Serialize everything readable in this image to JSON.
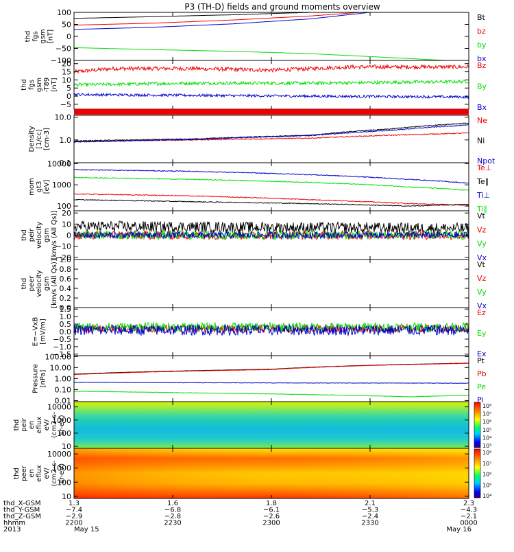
{
  "title": "P3 (TH-D) fields and ground moments overview",
  "colors": {
    "black": "#000000",
    "red": "#ee0000",
    "green": "#00dd00",
    "blue": "#0000cc"
  },
  "chart_data": [
    {
      "type": "line",
      "ylabel": [
        "thd",
        "fgs",
        "gsm",
        "[nT]"
      ],
      "ylim": [
        -100,
        100
      ],
      "ytype": "linear",
      "yticks": [
        100,
        50,
        0,
        -50,
        -100
      ],
      "ytick_labels": [
        "100",
        "50",
        "0",
        "−50",
        "−100"
      ],
      "series": [
        {
          "name": "Bt",
          "color": "#000000",
          "x": [
            0,
            0.2,
            0.4,
            0.6,
            0.75,
            1
          ],
          "y": [
            75,
            82,
            90,
            100,
            110,
            125
          ],
          "noise": 0
        },
        {
          "name": "bz",
          "color": "#ee0000",
          "x": [
            0,
            0.2,
            0.4,
            0.6,
            0.75,
            1
          ],
          "y": [
            47,
            55,
            68,
            85,
            103,
            130
          ],
          "noise": 0
        },
        {
          "name": "by",
          "color": "#00dd00",
          "x": [
            0,
            0.2,
            0.4,
            0.6,
            0.8,
            1
          ],
          "y": [
            -47,
            -55,
            -62,
            -72,
            -88,
            -105
          ],
          "noise": 0
        },
        {
          "name": "bx",
          "color": "#0000cc",
          "x": [
            0,
            0.2,
            0.4,
            0.6,
            0.75,
            1
          ],
          "y": [
            29,
            38,
            52,
            73,
            100,
            130
          ],
          "noise": 0
        }
      ]
    },
    {
      "type": "line",
      "ylabel": [
        "thd",
        "fgs",
        "gsm",
        "-T89",
        "[nT]"
      ],
      "ylim": [
        -8,
        22
      ],
      "ytype": "linear",
      "yticks": [
        20,
        15,
        10,
        5,
        0,
        -5
      ],
      "ytick_labels": [
        "20",
        "15",
        "10",
        "5",
        "0",
        "−5"
      ],
      "series": [
        {
          "name": "Bz",
          "color": "#ee0000",
          "x": [
            0,
            0.1,
            0.3,
            0.5,
            0.7,
            1
          ],
          "y": [
            15,
            17,
            17,
            16,
            18,
            18
          ],
          "noise": 1.2
        },
        {
          "name": "By",
          "color": "#00dd00",
          "x": [
            0,
            0.3,
            0.6,
            1
          ],
          "y": [
            7,
            8,
            8,
            9
          ],
          "noise": 1.0
        },
        {
          "name": "Bx",
          "color": "#0000cc",
          "x": [
            0,
            0.3,
            0.6,
            1
          ],
          "y": [
            1,
            0.5,
            0,
            -0.5
          ],
          "noise": 0.8
        }
      ]
    },
    {
      "type": "line",
      "ylabel": [
        "Density",
        "[1/cc]",
        "[cm-3]"
      ],
      "ylim": [
        0.1,
        12
      ],
      "ytype": "log",
      "yticks": [
        10,
        1,
        0.1
      ],
      "ytick_labels": [
        "10.0",
        "1.0",
        "0.1"
      ],
      "series": [
        {
          "name": "Ne",
          "color": "#ee0000",
          "x": [
            0,
            0.3,
            0.6,
            1
          ],
          "y": [
            0.85,
            1.0,
            1.2,
            2.0
          ],
          "noise": 0.02
        },
        {
          "name": "Ni",
          "color": "#000000",
          "x": [
            0,
            0.3,
            0.6,
            0.8,
            1
          ],
          "y": [
            0.9,
            1.1,
            1.6,
            3.0,
            5.5
          ],
          "noise": 0.02
        },
        {
          "name": "Npot",
          "color": "#0000cc",
          "x": [
            0,
            0.3,
            0.6,
            0.8,
            1
          ],
          "y": [
            0.8,
            1.05,
            1.55,
            2.6,
            4.5
          ],
          "noise": 0.02
        }
      ]
    },
    {
      "type": "line",
      "ylabel": [
        "mom",
        "gt3",
        "[eV]"
      ],
      "ylim": [
        60,
        11000
      ],
      "ytype": "log",
      "yticks": [
        10000,
        1000,
        100
      ],
      "ytick_labels": [
        "10000",
        "1000",
        "100"
      ],
      "series": [
        {
          "name": "Te⊥",
          "color": "#ee0000",
          "x": [
            0,
            0.3,
            0.6,
            0.85,
            1
          ],
          "y": [
            370,
            300,
            200,
            130,
            110
          ],
          "noise": 0.02
        },
        {
          "name": "Te∥",
          "color": "#000000",
          "x": [
            0,
            0.3,
            0.6,
            0.85,
            1
          ],
          "y": [
            200,
            160,
            130,
            100,
            120
          ],
          "noise": 0.02
        },
        {
          "name": "Ti⊥",
          "color": "#0000cc",
          "x": [
            0,
            0.3,
            0.6,
            0.85,
            1
          ],
          "y": [
            5200,
            4300,
            3000,
            1800,
            1200
          ],
          "noise": 0.02
        },
        {
          "name": "Ti∥",
          "color": "#00dd00",
          "x": [
            0,
            0.3,
            0.6,
            0.85,
            1
          ],
          "y": [
            2200,
            1800,
            1300,
            800,
            550
          ],
          "noise": 0.02
        }
      ]
    },
    {
      "type": "line",
      "ylabel": [
        "thd",
        "peir",
        "velocity",
        "gsm",
        "[km/s (All Qs)]"
      ],
      "ylim": [
        -22,
        22
      ],
      "ytype": "linear",
      "yticks": [
        20,
        10,
        0,
        -10,
        -20
      ],
      "ytick_labels": [
        "20",
        "10",
        "0",
        "−10",
        "−20"
      ],
      "series": [
        {
          "name": "Vt",
          "color": "#000000",
          "x": [
            0,
            1
          ],
          "y": [
            8,
            6
          ],
          "noise": 5
        },
        {
          "name": "Vz",
          "color": "#ee0000",
          "x": [
            0,
            1
          ],
          "y": [
            0,
            0
          ],
          "noise": 4
        },
        {
          "name": "Vy",
          "color": "#00dd00",
          "x": [
            0,
            1
          ],
          "y": [
            0,
            0
          ],
          "noise": 4
        },
        {
          "name": "Vx",
          "color": "#0000cc",
          "x": [
            0,
            1
          ],
          "y": [
            0,
            0
          ],
          "noise": 3
        }
      ]
    },
    {
      "type": "line",
      "ylabel": [
        "thd",
        "peer",
        "velocity",
        "gsm",
        "[km/s (All Qs)]"
      ],
      "ylim": [
        0,
        1
      ],
      "ytype": "linear",
      "yticks": [
        1.0,
        0.8,
        0.6,
        0.4,
        0.2,
        0.0
      ],
      "ytick_labels": [
        "1.0",
        "0.8",
        "0.6",
        "0.4",
        "0.2",
        "0.0"
      ],
      "series": [
        {
          "name": "Vt",
          "color": "#000000",
          "x": [],
          "y": [],
          "noise": 0
        },
        {
          "name": "Vz",
          "color": "#ee0000",
          "x": [],
          "y": [],
          "noise": 0
        },
        {
          "name": "Vy",
          "color": "#00dd00",
          "x": [],
          "y": [],
          "noise": 0
        },
        {
          "name": "Vx",
          "color": "#0000cc",
          "x": [],
          "y": [],
          "noise": 0
        }
      ]
    },
    {
      "type": "line",
      "ylabel": [
        "E=−VxB",
        "[mV/m]"
      ],
      "ylim": [
        -1.6,
        1.6
      ],
      "ytype": "linear",
      "yticks": [
        1.5,
        1.0,
        0.5,
        0.0,
        -0.5,
        -1.0,
        -1.5
      ],
      "ytick_labels": [
        "1.5",
        "1.0",
        "0.5",
        "0.0",
        "−0.5",
        "−1.0",
        "−1.5"
      ],
      "series": [
        {
          "name": "Ez",
          "color": "#ee0000",
          "x": [
            0,
            1
          ],
          "y": [
            0.2,
            0.2
          ],
          "noise": 0.25
        },
        {
          "name": "Ey",
          "color": "#00dd00",
          "x": [
            0,
            1
          ],
          "y": [
            0.3,
            0.3
          ],
          "noise": 0.3
        },
        {
          "name": "Ex",
          "color": "#0000cc",
          "x": [
            0,
            1
          ],
          "y": [
            0.1,
            0.1
          ],
          "noise": 0.35
        }
      ]
    },
    {
      "type": "line",
      "ylabel": [
        "Pressure",
        "[nPa]"
      ],
      "ylim": [
        0.008,
        120
      ],
      "ytype": "log",
      "yticks": [
        100,
        10,
        1,
        0.1,
        0.01
      ],
      "ytick_labels": [
        "100.00",
        "10.00",
        "1.00",
        "0.10",
        "0.01"
      ],
      "series": [
        {
          "name": "Pt",
          "color": "#000000",
          "x": [
            0,
            0.5,
            1
          ],
          "y": [
            2.5,
            7,
            25
          ],
          "noise": 0.01
        },
        {
          "name": "Pb",
          "color": "#ee0000",
          "x": [
            0,
            0.5,
            1
          ],
          "y": [
            2.3,
            6.5,
            24
          ],
          "noise": 0.01
        },
        {
          "name": "Pe",
          "color": "#00dd00",
          "x": [
            0,
            0.3,
            0.6,
            0.85,
            1
          ],
          "y": [
            0.07,
            0.05,
            0.035,
            0.022,
            0.03
          ],
          "noise": 0.02
        },
        {
          "name": "Pi",
          "color": "#0000cc",
          "x": [
            0,
            0.5,
            1
          ],
          "y": [
            0.45,
            0.4,
            0.38
          ],
          "noise": 0.02
        }
      ]
    },
    {
      "type": "heatmap",
      "ylabel": [
        "thd",
        "peir",
        "en",
        "eflux",
        "eV/",
        "(cm2-s-",
        "sr-eV)"
      ],
      "ylim": [
        7,
        25000
      ],
      "ytype": "log",
      "yticks": [
        10000,
        1000,
        100,
        10
      ],
      "ytick_labels": [
        "10000",
        "1000",
        "100",
        "10"
      ],
      "colorbar_ticks": [
        "10⁸",
        "10⁷",
        "10⁶",
        "10⁵",
        "10⁴",
        "10³"
      ]
    },
    {
      "type": "heatmap",
      "ylabel": [
        "thd",
        "peer",
        "en",
        "eflux",
        "eV/",
        "(cm2-s-",
        "sr-eV)"
      ],
      "ylim": [
        7,
        25000
      ],
      "ytype": "log",
      "yticks": [
        10000,
        1000,
        100,
        10
      ],
      "ytick_labels": [
        "10000",
        "1000",
        "100",
        "10"
      ],
      "colorbar_ticks": [
        "10⁸",
        "10⁷",
        "10⁶",
        "10⁵",
        "10⁴"
      ]
    }
  ],
  "bottom": {
    "row_labels": [
      "thd_X-GSM",
      "thd_Y-GSM",
      "thd_Z-GSM",
      "hhmm",
      "2013"
    ],
    "columns": [
      {
        "values": [
          "1.3",
          "−7.4",
          "−2.9",
          "2200",
          "May 15"
        ]
      },
      {
        "values": [
          "1.6",
          "−6.8",
          "−2.8",
          "2230",
          ""
        ]
      },
      {
        "values": [
          "1.8",
          "−6.1",
          "−2.6",
          "2300",
          ""
        ]
      },
      {
        "values": [
          "2.1",
          "−5.3",
          "−2.4",
          "2330",
          ""
        ]
      },
      {
        "values": [
          "2.3",
          "−4.3",
          "−2.1",
          "0000",
          "May 16"
        ]
      }
    ]
  }
}
